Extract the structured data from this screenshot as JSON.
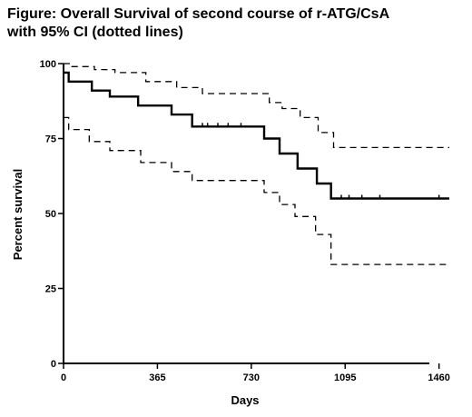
{
  "title_lines": [
    "Figure: Overall Survival of second course of r-ATG/CsA",
    "with 95% CI (dotted lines)"
  ],
  "chart_data": {
    "type": "line",
    "title": "Figure: Overall Survival of second course of r-ATG/CsA with 95% CI (dotted lines)",
    "xlabel": "Days",
    "ylabel": "Percent survival",
    "xlim": [
      0,
      1500
    ],
    "ylim": [
      0,
      100
    ],
    "xticks": [
      0,
      365,
      730,
      1095,
      1460
    ],
    "yticks": [
      0,
      25,
      50,
      75,
      100
    ],
    "grid": false,
    "series": [
      {
        "style": "solid",
        "step": true,
        "x": [
          0,
          20,
          110,
          180,
          290,
          420,
          500,
          780,
          840,
          910,
          985,
          1040,
          1500
        ],
        "y": [
          97,
          94,
          91,
          89,
          86,
          83,
          79,
          75,
          70,
          65,
          60,
          55,
          55
        ],
        "censor_x": [
          540,
          560,
          600,
          640,
          690,
          1080,
          1110,
          1160,
          1230,
          1460
        ],
        "censor_y": [
          79,
          79,
          79,
          79,
          79,
          55,
          55,
          55,
          55,
          55
        ]
      },
      {
        "style": "dashed",
        "step": true,
        "x": [
          0,
          30,
          120,
          200,
          320,
          440,
          540,
          800,
          850,
          920,
          990,
          1050,
          1500
        ],
        "y": [
          100,
          99,
          98,
          97,
          94,
          92,
          90,
          87,
          85,
          82,
          77,
          72,
          72
        ]
      },
      {
        "style": "dashed",
        "step": true,
        "x": [
          0,
          20,
          100,
          180,
          300,
          420,
          500,
          780,
          840,
          900,
          980,
          1040,
          1500
        ],
        "y": [
          82,
          78,
          74,
          71,
          67,
          64,
          61,
          57,
          53,
          49,
          43,
          33,
          33
        ]
      }
    ]
  }
}
